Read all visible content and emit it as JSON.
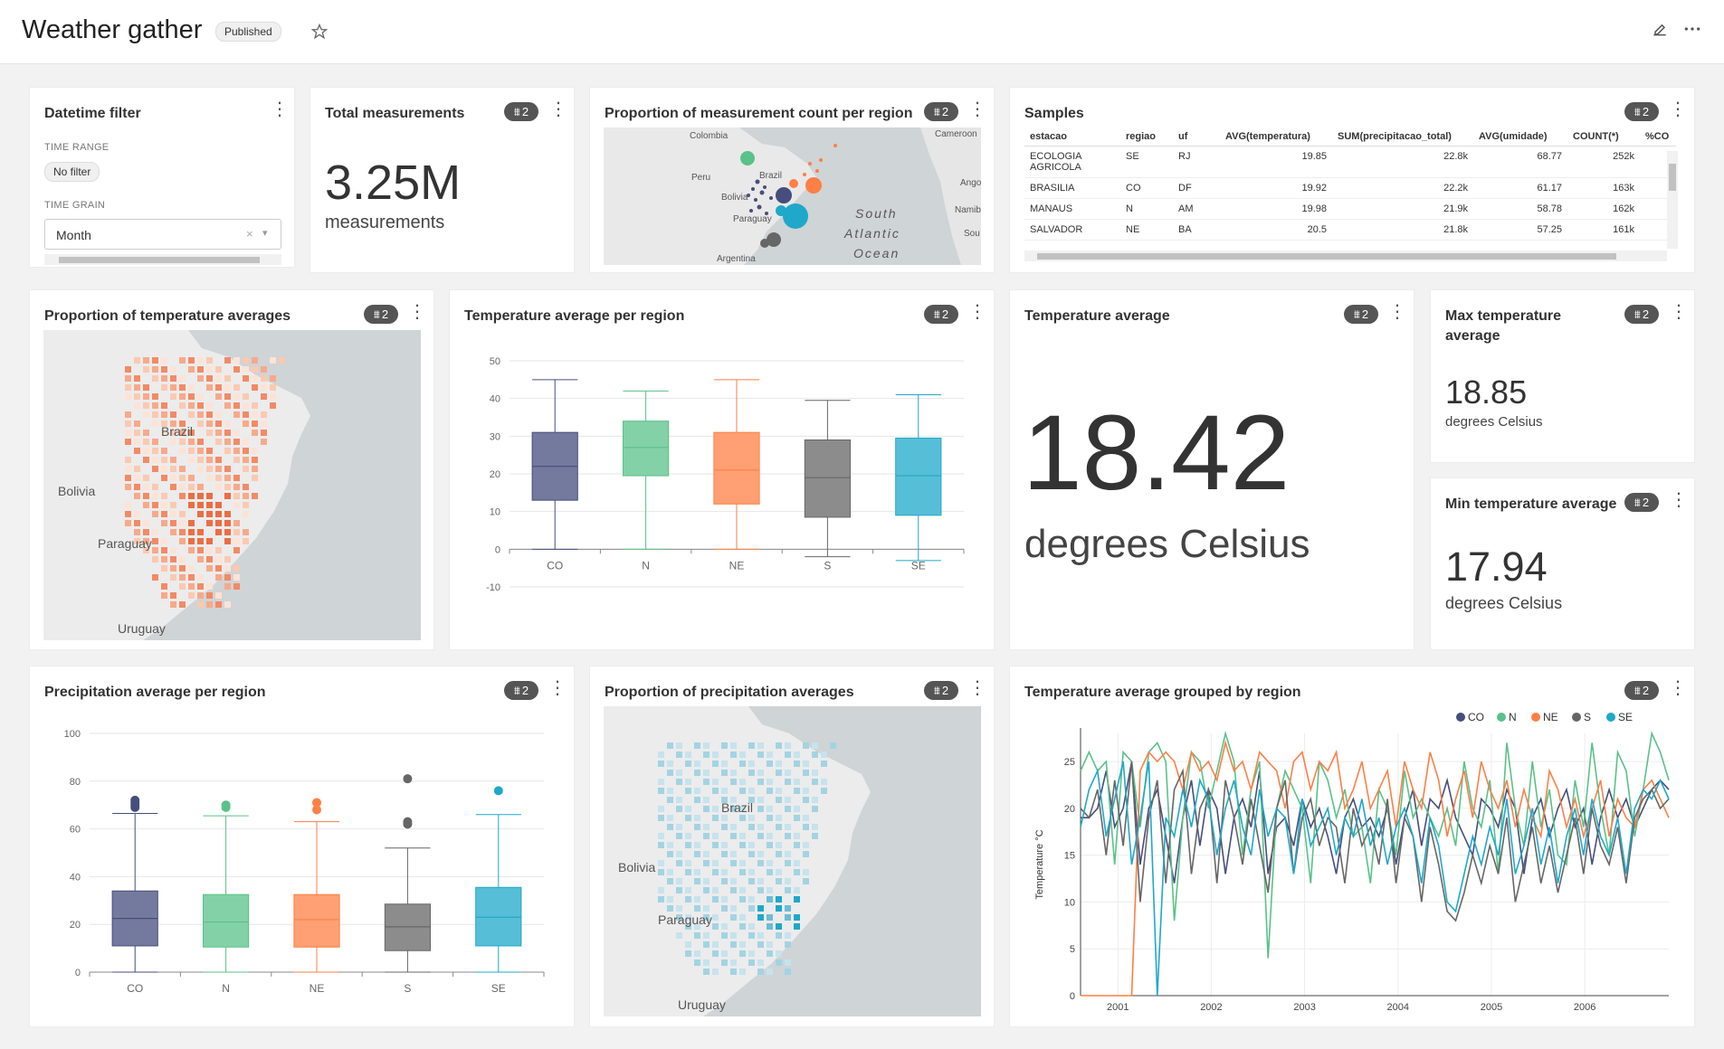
{
  "header": {
    "title": "Weather gather",
    "status": "Published"
  },
  "filters_count": "2",
  "datetime_filter": {
    "title": "Datetime filter",
    "time_range_label": "TIME RANGE",
    "time_range_value": "No filter",
    "time_grain_label": "TIME GRAIN",
    "time_grain_value": "Month"
  },
  "total_measurements": {
    "title": "Total measurements",
    "value": "3.25M",
    "unit": "measurements"
  },
  "proportion_count_map": {
    "title": "Proportion of measurement count per region",
    "labels": [
      "Colombia",
      "Peru",
      "Brazil",
      "Bolivia",
      "Paraguay",
      "Argentina",
      "South",
      "Atlantic",
      "Ocean",
      "Cameroon",
      "Ango",
      "Namib",
      "Sou"
    ]
  },
  "samples": {
    "title": "Samples",
    "columns": [
      "estacao",
      "regiao",
      "uf",
      "AVG(temperatura)",
      "SUM(precipitacao_total)",
      "AVG(umidade)",
      "COUNT(*)",
      "%CO"
    ],
    "rows": [
      [
        "ECOLOGIA AGRICOLA",
        "SE",
        "RJ",
        "19.85",
        "22.8k",
        "68.77",
        "252k"
      ],
      [
        "BRASILIA",
        "CO",
        "DF",
        "19.92",
        "22.2k",
        "61.17",
        "163k"
      ],
      [
        "MANAUS",
        "N",
        "AM",
        "19.98",
        "21.9k",
        "58.78",
        "162k"
      ],
      [
        "SALVADOR",
        "NE",
        "BA",
        "20.5",
        "21.8k",
        "57.25",
        "161k"
      ]
    ]
  },
  "prop_temp_map": {
    "title": "Proportion of temperature averages",
    "labels": [
      "Brazil",
      "Bolivia",
      "Paraguay",
      "Uruguay"
    ]
  },
  "temp_box": {
    "title": "Temperature average per region"
  },
  "temp_average": {
    "title": "Temperature average",
    "value": "18.42",
    "unit": "degrees Celsius"
  },
  "max_temp": {
    "title": "Max temperature average",
    "value": "18.85",
    "unit": "degrees Celsius"
  },
  "min_temp": {
    "title": "Min temperature average",
    "value": "17.94",
    "unit": "degrees Celsius"
  },
  "precip_box": {
    "title": "Precipitation average per region"
  },
  "prop_precip_map": {
    "title": "Proportion of precipitation averages",
    "labels": [
      "Brazil",
      "Bolivia",
      "Paraguay",
      "Uruguay"
    ]
  },
  "line_chart": {
    "title": "Temperature average grouped by region"
  },
  "colors": {
    "CO": "#454e7c",
    "N": "#5ac189",
    "NE": "#ff7f44",
    "S": "#666666",
    "SE": "#1fa8c9"
  },
  "chart_data": [
    {
      "type": "box",
      "title": "Temperature average per region",
      "categories": [
        "CO",
        "N",
        "NE",
        "S",
        "SE"
      ],
      "ylim": [
        -10,
        50
      ],
      "yticks": [
        -10,
        0,
        10,
        20,
        30,
        40,
        50
      ],
      "boxes": [
        {
          "name": "CO",
          "min": 0,
          "q1": 13,
          "median": 22,
          "q3": 31,
          "max": 45
        },
        {
          "name": "N",
          "min": 0,
          "q1": 19.5,
          "median": 27,
          "q3": 34,
          "max": 42
        },
        {
          "name": "NE",
          "min": 0,
          "q1": 12,
          "median": 21,
          "q3": 31,
          "max": 45
        },
        {
          "name": "S",
          "min": -2,
          "q1": 8.5,
          "median": 19,
          "q3": 29,
          "max": 39.5
        },
        {
          "name": "SE",
          "min": -3,
          "q1": 9,
          "median": 19.5,
          "q3": 29.5,
          "max": 41
        }
      ]
    },
    {
      "type": "box",
      "title": "Precipitation average per region",
      "categories": [
        "CO",
        "N",
        "NE",
        "S",
        "SE"
      ],
      "ylim": [
        0,
        100
      ],
      "yticks": [
        0,
        20,
        40,
        60,
        80,
        100
      ],
      "boxes": [
        {
          "name": "CO",
          "min": 0,
          "q1": 11,
          "median": 22.5,
          "q3": 34,
          "max": 66.5,
          "outliers": [
            69,
            70,
            71,
            72
          ]
        },
        {
          "name": "N",
          "min": 0,
          "q1": 10.5,
          "median": 21,
          "q3": 32.5,
          "max": 65.5,
          "outliers": [
            69,
            70
          ]
        },
        {
          "name": "NE",
          "min": 0,
          "q1": 10.5,
          "median": 22,
          "q3": 32.5,
          "max": 63,
          "outliers": [
            68,
            71
          ]
        },
        {
          "name": "S",
          "min": 0,
          "q1": 9,
          "median": 19,
          "q3": 28.5,
          "max": 52,
          "outliers": [
            62,
            63,
            81
          ]
        },
        {
          "name": "SE",
          "min": 0,
          "q1": 11,
          "median": 23,
          "q3": 35.5,
          "max": 66,
          "outliers": [
            76
          ]
        }
      ]
    },
    {
      "type": "line",
      "title": "Temperature average grouped by region",
      "ylabel": "Temperature °C",
      "xlim": [
        2000.6,
        2006.9
      ],
      "xticks": [
        2001,
        2002,
        2003,
        2004,
        2005,
        2006
      ],
      "ylim": [
        0,
        28
      ],
      "yticks": [
        0,
        5,
        10,
        15,
        20,
        25
      ],
      "legend": [
        "CO",
        "N",
        "NE",
        "S",
        "SE"
      ],
      "series": [
        {
          "name": "CO",
          "values": [
            19,
            19,
            20,
            24,
            18,
            20,
            25,
            14,
            20,
            22,
            17,
            12,
            19,
            23,
            16,
            22,
            20,
            13,
            19,
            21,
            18,
            24,
            13,
            18,
            19,
            16,
            21,
            18,
            20,
            17,
            13,
            19,
            21,
            18,
            19,
            17,
            20,
            14,
            19,
            22,
            16,
            21,
            20,
            23,
            19,
            17,
            15,
            21,
            20,
            18,
            22,
            20,
            13,
            19,
            21,
            17,
            20,
            22,
            18,
            20,
            14,
            19,
            22,
            19,
            21,
            18,
            20,
            22,
            23,
            22
          ]
        },
        {
          "name": "N",
          "values": [
            24,
            26,
            24,
            25,
            14,
            26,
            25,
            18,
            26,
            27,
            25,
            8,
            19,
            26,
            25,
            20,
            24,
            28,
            25,
            15,
            22,
            25,
            4,
            20,
            24,
            22,
            20,
            12,
            25,
            23,
            19,
            22,
            17,
            18,
            12,
            22,
            20,
            15,
            24,
            19,
            21,
            19,
            17,
            20,
            16,
            25,
            20,
            18,
            23,
            13,
            27,
            20,
            16,
            25,
            18,
            22,
            15,
            14,
            23,
            18,
            27,
            20,
            15,
            26,
            24,
            17,
            22,
            28,
            26,
            23
          ]
        },
        {
          "name": "NE",
          "values": [
            0,
            0,
            0,
            0,
            0,
            0,
            0,
            24,
            26,
            25,
            26,
            25,
            22,
            26,
            24,
            25,
            23,
            27,
            24,
            25,
            22,
            26,
            25,
            24,
            20,
            25,
            26,
            22,
            25,
            24,
            26,
            20,
            22,
            25,
            20,
            22,
            24,
            18,
            25,
            22,
            20,
            26,
            23,
            17,
            21,
            24,
            19,
            25,
            22,
            20,
            23,
            18,
            22,
            19,
            17,
            24,
            22,
            18,
            21,
            17,
            20,
            23,
            17,
            21,
            19,
            18,
            22,
            23,
            21,
            19
          ]
        },
        {
          "name": "S",
          "values": [
            20,
            19,
            22,
            15,
            23,
            16,
            25,
            10,
            19,
            23,
            12,
            22,
            24,
            13,
            20,
            22,
            12,
            23,
            19,
            14,
            21,
            16,
            11,
            20,
            23,
            13,
            19,
            21,
            16,
            19,
            18,
            12,
            20,
            16,
            18,
            14,
            21,
            12,
            19,
            17,
            10,
            18,
            14,
            9,
            8,
            11,
            15,
            12,
            16,
            13,
            19,
            10,
            14,
            18,
            12,
            16,
            11,
            15,
            19,
            13,
            20,
            16,
            14,
            18,
            12,
            19,
            21,
            22,
            20,
            21
          ]
        },
        {
          "name": "SE",
          "values": [
            18,
            22,
            24,
            17,
            21,
            25,
            14,
            19,
            25,
            0,
            19,
            17,
            22,
            18,
            23,
            21,
            15,
            20,
            23,
            18,
            15,
            22,
            17,
            20,
            19,
            13,
            21,
            16,
            18,
            20,
            15,
            19,
            17,
            21,
            16,
            19,
            14,
            18,
            20,
            17,
            12,
            19,
            16,
            10,
            9,
            13,
            17,
            14,
            18,
            15,
            21,
            13,
            16,
            20,
            14,
            18,
            12,
            17,
            20,
            15,
            21,
            17,
            15,
            19,
            13,
            20,
            22,
            21,
            23,
            21
          ]
        }
      ]
    }
  ]
}
